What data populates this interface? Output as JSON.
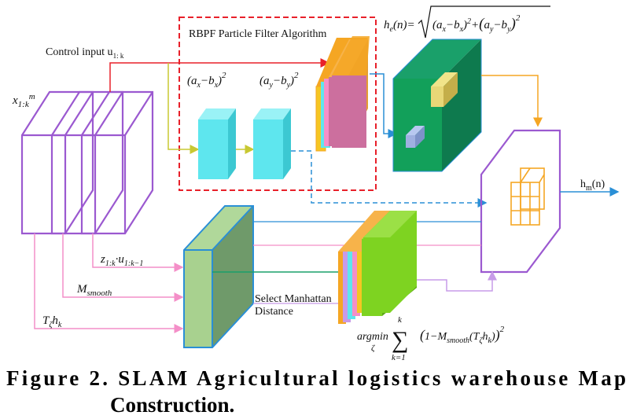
{
  "labels": {
    "control_input": "Control input u",
    "control_input_sub": "1: k",
    "x_input": "x",
    "x_input_sub": "1:k",
    "x_input_sup": "m",
    "rbpf_title": "RBPF Particle Filter Algorithm",
    "ax_bx_sq": "(a",
    "ax_bx_sq_rest": "−b",
    "ay_by_sq": "(a",
    "he_formula_lhs": "h",
    "he_formula_sub": "e",
    "he_formula_mid": "(n)=",
    "he_formula_body": "(a",
    "z_input": "z",
    "z_input_sub": "1:k",
    "z_input_u": "u",
    "z_input_u_sub": "1:k−1",
    "m_smooth": "M",
    "m_smooth_sub": "smooth",
    "t_zeta": "T",
    "t_zeta_sub": "ζ",
    "t_zeta_h": "h",
    "t_zeta_h_sub": "k",
    "select_manhattan_1": "Select Manhattan",
    "select_manhattan_2": "Distance",
    "argmin": "argmin",
    "argmin_sub": "ζ",
    "sum_top": "k",
    "sum_bottom": "k=1",
    "sum_body": "(1−M",
    "sum_body_sub": "smooth",
    "sum_body_rest": "(T",
    "hm_output": "h",
    "hm_output_sub": "m",
    "hm_output_rest": "(n)"
  },
  "caption": {
    "line1": "Figure 2. SLAM  Agricultural  logistics  warehouse  Map",
    "line2": "Construction."
  },
  "colors": {
    "purple": "#9b59d0",
    "red_dashed": "#e8202a",
    "cyan": "#5ee6ee",
    "magenta_block": "#cc6f9e",
    "green_block": "#12a05a",
    "olive_block": "#7aa86a",
    "lime_block": "#7ed321",
    "orange": "#f5a623",
    "blue_arrow": "#2a8fd6",
    "pink_arrow": "#f48fc8",
    "yellow_arrow": "#c8c832"
  }
}
